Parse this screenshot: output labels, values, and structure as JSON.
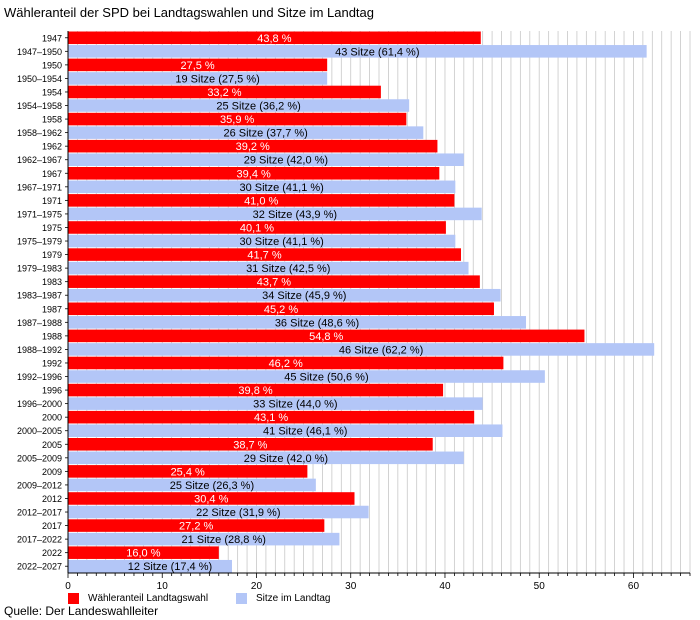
{
  "chart_data": {
    "type": "bar",
    "orientation": "horizontal",
    "title": "Wähleranteil der SPD bei Landtagswahlen und Sitze im Landtag",
    "xlim": [
      0,
      66
    ],
    "x_ticks": [
      0,
      10,
      20,
      30,
      40,
      50,
      60
    ],
    "grid": "vertical lines at every 1 unit",
    "legend_position": "bottom-left",
    "colors": {
      "vote_share": "#ff0000",
      "seat_share": "#b3c6f7",
      "grid": "#c8c8c8"
    },
    "series": [
      {
        "name": "Wähleranteil Landtagswahl",
        "color": "#ff0000"
      },
      {
        "name": "Sitze im Landtag",
        "color": "#b3c6f7"
      }
    ],
    "rows": [
      {
        "category": "1947",
        "series": 0,
        "value": 43.8,
        "label": "43,8 %"
      },
      {
        "category": "1947–1950",
        "series": 1,
        "value": 61.4,
        "label": "43 Sitze (61,4 %)"
      },
      {
        "category": "1950",
        "series": 0,
        "value": 27.5,
        "label": "27,5 %"
      },
      {
        "category": "1950–1954",
        "series": 1,
        "value": 27.5,
        "label": "19 Sitze (27,5 %)"
      },
      {
        "category": "1954",
        "series": 0,
        "value": 33.2,
        "label": "33,2 %"
      },
      {
        "category": "1954–1958",
        "series": 1,
        "value": 36.2,
        "label": "25 Sitze (36,2 %)"
      },
      {
        "category": "1958",
        "series": 0,
        "value": 35.9,
        "label": "35,9 %"
      },
      {
        "category": "1958–1962",
        "series": 1,
        "value": 37.7,
        "label": "26 Sitze (37,7 %)"
      },
      {
        "category": "1962",
        "series": 0,
        "value": 39.2,
        "label": "39,2 %"
      },
      {
        "category": "1962–1967",
        "series": 1,
        "value": 42.0,
        "label": "29 Sitze (42,0 %)"
      },
      {
        "category": "1967",
        "series": 0,
        "value": 39.4,
        "label": "39,4 %"
      },
      {
        "category": "1967–1971",
        "series": 1,
        "value": 41.1,
        "label": "30 Sitze (41,1 %)"
      },
      {
        "category": "1971",
        "series": 0,
        "value": 41.0,
        "label": "41,0 %"
      },
      {
        "category": "1971–1975",
        "series": 1,
        "value": 43.9,
        "label": "32 Sitze (43,9 %)"
      },
      {
        "category": "1975",
        "series": 0,
        "value": 40.1,
        "label": "40,1 %"
      },
      {
        "category": "1975–1979",
        "series": 1,
        "value": 41.1,
        "label": "30 Sitze (41,1 %)"
      },
      {
        "category": "1979",
        "series": 0,
        "value": 41.7,
        "label": "41,7 %"
      },
      {
        "category": "1979–1983",
        "series": 1,
        "value": 42.5,
        "label": "31 Sitze (42,5 %)"
      },
      {
        "category": "1983",
        "series": 0,
        "value": 43.7,
        "label": "43,7 %"
      },
      {
        "category": "1983–1987",
        "series": 1,
        "value": 45.9,
        "label": "34 Sitze (45,9 %)"
      },
      {
        "category": "1987",
        "series": 0,
        "value": 45.2,
        "label": "45,2 %"
      },
      {
        "category": "1987–1988",
        "series": 1,
        "value": 48.6,
        "label": "36 Sitze (48,6 %)"
      },
      {
        "category": "1988",
        "series": 0,
        "value": 54.8,
        "label": "54,8 %"
      },
      {
        "category": "1988–1992",
        "series": 1,
        "value": 62.2,
        "label": "46 Sitze (62,2 %)"
      },
      {
        "category": "1992",
        "series": 0,
        "value": 46.2,
        "label": "46,2 %"
      },
      {
        "category": "1992–1996",
        "series": 1,
        "value": 50.6,
        "label": "45 Sitze (50,6 %)"
      },
      {
        "category": "1996",
        "series": 0,
        "value": 39.8,
        "label": "39,8 %"
      },
      {
        "category": "1996–2000",
        "series": 1,
        "value": 44.0,
        "label": "33 Sitze (44,0 %)"
      },
      {
        "category": "2000",
        "series": 0,
        "value": 43.1,
        "label": "43,1 %"
      },
      {
        "category": "2000–2005",
        "series": 1,
        "value": 46.1,
        "label": "41 Sitze (46,1 %)"
      },
      {
        "category": "2005",
        "series": 0,
        "value": 38.7,
        "label": "38,7 %"
      },
      {
        "category": "2005–2009",
        "series": 1,
        "value": 42.0,
        "label": "29 Sitze (42,0 %)"
      },
      {
        "category": "2009",
        "series": 0,
        "value": 25.4,
        "label": "25,4 %"
      },
      {
        "category": "2009–2012",
        "series": 1,
        "value": 26.3,
        "label": "25 Sitze (26,3 %)"
      },
      {
        "category": "2012",
        "series": 0,
        "value": 30.4,
        "label": "30,4 %"
      },
      {
        "category": "2012–2017",
        "series": 1,
        "value": 31.9,
        "label": "22 Sitze (31,9 %)"
      },
      {
        "category": "2017",
        "series": 0,
        "value": 27.2,
        "label": "27,2 %"
      },
      {
        "category": "2017–2022",
        "series": 1,
        "value": 28.8,
        "label": "21 Sitze (28,8 %)"
      },
      {
        "category": "2022",
        "series": 0,
        "value": 16.0,
        "label": "16,0 %"
      },
      {
        "category": "2022–2027",
        "series": 1,
        "value": 17.4,
        "label": "12 Sitze (17,4 %)"
      }
    ]
  },
  "legend": {
    "vote_label": "Wähleranteil Landtagswahl",
    "seat_label": "Sitze im Landtag"
  },
  "source_note": "Quelle: Der Landeswahlleiter"
}
